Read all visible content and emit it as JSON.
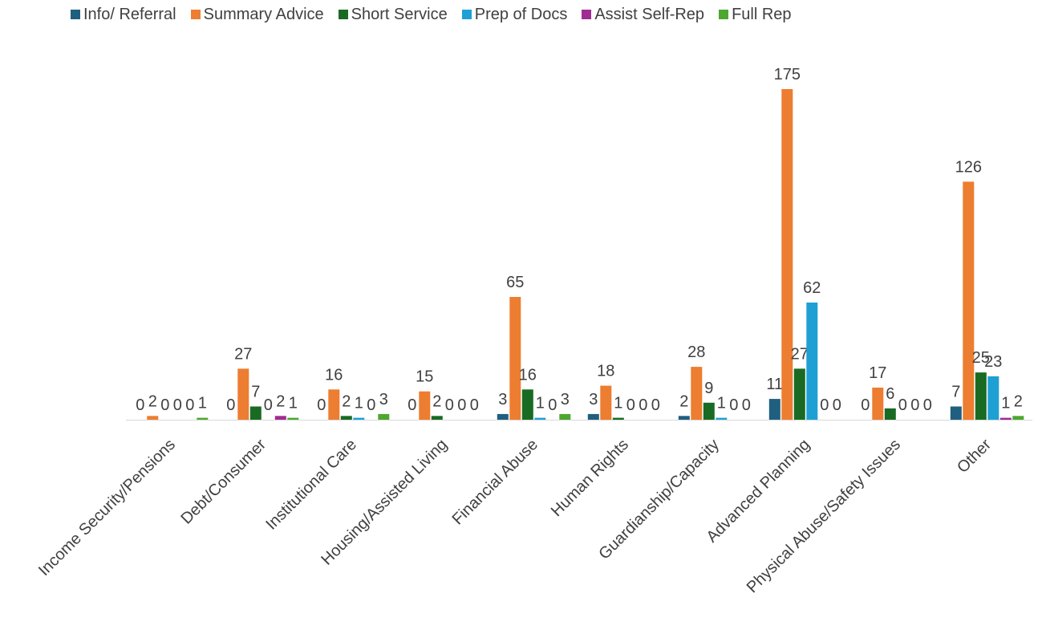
{
  "chart_data": {
    "type": "bar",
    "title": "",
    "xlabel": "",
    "ylabel": "",
    "ylim": [
      0,
      185
    ],
    "grid": false,
    "legend_position": "top",
    "categories": [
      "Income Security/Pensions",
      "Debt/Consumer",
      "Institutional Care",
      "Housing/Assisted Living",
      "Financial Abuse",
      "Human Rights",
      "Guardianship/Capacity",
      "Advanced Planning",
      "Physical Abuse/Safety Issues",
      "Other"
    ],
    "series": [
      {
        "name": "Info/ Referral",
        "color": "#1f5f7f",
        "values": [
          0,
          0,
          0,
          0,
          3,
          3,
          2,
          11,
          0,
          7
        ]
      },
      {
        "name": "Summary Advice",
        "color": "#ed7d31",
        "values": [
          2,
          27,
          16,
          15,
          65,
          18,
          28,
          175,
          17,
          126
        ]
      },
      {
        "name": "Short Service",
        "color": "#196b24",
        "values": [
          0,
          7,
          2,
          2,
          16,
          1,
          9,
          27,
          6,
          25
        ]
      },
      {
        "name": "Prep of Docs",
        "color": "#1ea0d4",
        "values": [
          0,
          0,
          1,
          0,
          1,
          0,
          1,
          62,
          0,
          23
        ]
      },
      {
        "name": "Assist Self-Rep",
        "color": "#a02b93",
        "values": [
          0,
          2,
          0,
          0,
          0,
          0,
          0,
          0,
          0,
          1
        ]
      },
      {
        "name": "Full Rep",
        "color": "#4ea72e",
        "values": [
          1,
          1,
          3,
          0,
          3,
          0,
          0,
          0,
          0,
          2
        ]
      }
    ]
  }
}
